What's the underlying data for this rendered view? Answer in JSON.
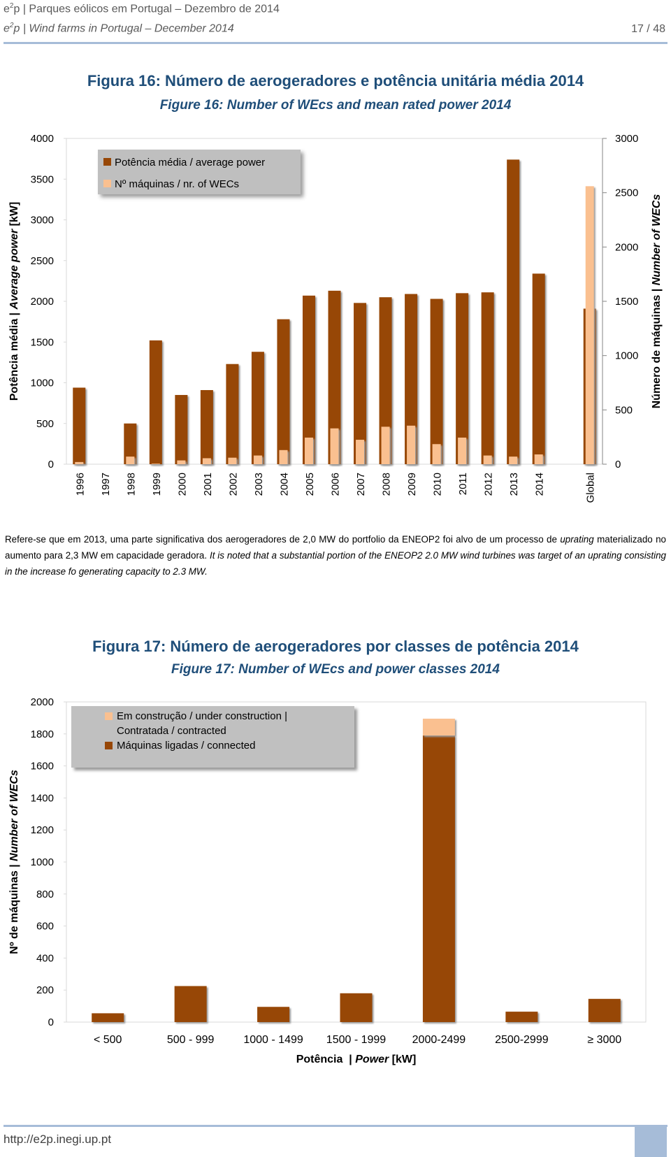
{
  "header": {
    "line1": [
      "e",
      "2",
      "p | Parques eólicos em Portugal – Dezembro de 2014"
    ],
    "line2": [
      "e",
      "2",
      "p | Wind farms in Portugal – December 2014"
    ],
    "page": "17 / 48"
  },
  "paragraph": [
    "Refere-se que em 2013, uma parte significativa dos aerogeradores de 2,0 MW do portfolio da ENEOP2 foi alvo de um processo de ",
    "uprating",
    " materializado no aumento para 2,3 MW em capacidade geradora. ",
    "It is noted that a substantial portion of the ENEOP2 2.0 MW wind turbines was target of an uprating consisting in the increase fo generating capacity to 2.3 MW."
  ],
  "footer": {
    "url": "http://e2p.inegi.up.pt"
  },
  "chart_data": [
    {
      "type": "bar",
      "title": "Figura 16: Número de aerogeradores e potência unitária média 2014",
      "subtitle": "Figure 16: Number of WEcs and mean rated power 2014",
      "y_label": [
        "Potência média | ",
        "Average power",
        " [kW]"
      ],
      "y2_label": [
        "Número de máquinas | ",
        "Number of WECs"
      ],
      "categories": [
        "1996",
        "1997",
        "1998",
        "1999",
        "2000",
        "2001",
        "2002",
        "2003",
        "2004",
        "2005",
        "2006",
        "2007",
        "2008",
        "2009",
        "2010",
        "2011",
        "2012",
        "2013",
        "2014",
        null,
        "Global"
      ],
      "series": [
        {
          "name": "Potência média / average power",
          "color": "#974706",
          "values": [
            940,
            null,
            500,
            1520,
            850,
            910,
            1230,
            1380,
            1780,
            2070,
            2130,
            1980,
            2050,
            2090,
            2030,
            2100,
            2110,
            3740,
            2340,
            null,
            1910
          ]
        },
        {
          "name": "Nº máquinas / nr. of WECs",
          "color": "#fac090",
          "axis": "y2",
          "values": [
            20,
            null,
            70,
            5,
            35,
            55,
            60,
            80,
            130,
            245,
            330,
            225,
            345,
            355,
            185,
            245,
            80,
            70,
            90,
            null,
            2560
          ]
        }
      ],
      "ylim": [
        0,
        4000
      ],
      "yticks": [
        0,
        500,
        1000,
        1500,
        2000,
        2500,
        3000,
        3500,
        4000
      ],
      "y2lim": [
        0,
        3000
      ],
      "y2ticks": [
        0,
        500,
        1000,
        1500,
        2000,
        2500,
        3000
      ],
      "grid": false
    },
    {
      "type": "stacked_bar",
      "title": "Figura 17: Número de aerogeradores por classes de potência 2014",
      "subtitle": "Figure 17: Number of WEcs and power classes 2014",
      "y_label": [
        "Nº de máquinas | ",
        "Number of WECs"
      ],
      "x_label": [
        "Potência  | ",
        "Power",
        " [kW]"
      ],
      "categories": [
        "< 500",
        "500 - 999",
        "1000 - 1499",
        "1500 - 1999",
        "2000-2499",
        "2500-2999",
        "≥ 3000"
      ],
      "series": [
        {
          "name": "Máquinas ligadas / connected",
          "color": "#974706",
          "values": [
            55,
            225,
            95,
            180,
            1790,
            65,
            145
          ]
        },
        {
          "name": "Em construção / under construction | Contratada / contracted",
          "color": "#fac090",
          "values": [
            0,
            0,
            0,
            0,
            105,
            0,
            0
          ]
        }
      ],
      "ylim": [
        0,
        2000
      ],
      "yticks": [
        0,
        200,
        400,
        600,
        800,
        1000,
        1200,
        1400,
        1600,
        1800,
        2000
      ],
      "grid": false
    }
  ]
}
